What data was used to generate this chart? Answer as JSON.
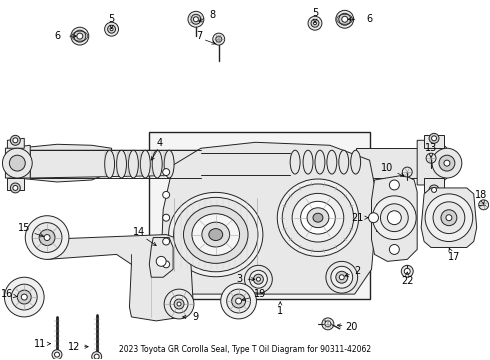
{
  "title": "2023 Toyota GR Corolla Seal, Type T Oil Diagram for 90311-42062",
  "bg_color": "#ffffff",
  "line_color": "#222222",
  "fill_light": "#e8e8e8",
  "fill_mid": "#d0d0d0",
  "fill_dark": "#b0b0b0",
  "figsize": [
    4.9,
    3.6
  ],
  "dpi": 100,
  "fs": 7.0
}
